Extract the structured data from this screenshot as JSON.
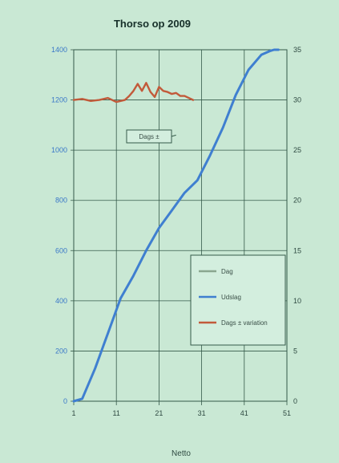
{
  "chart_data": {
    "type": "line",
    "title": "Thorso op 2009",
    "xlabel": "Netto",
    "ylabel": "",
    "y2label": "",
    "x_ticks": [
      "1",
      "11",
      "21",
      "31",
      "41",
      "51"
    ],
    "y_left_ticks": [
      "0",
      "200",
      "400",
      "600",
      "800",
      "1000",
      "1200",
      "1400"
    ],
    "y_right_ticks": [
      "0",
      "5",
      "10",
      "15",
      "20",
      "25",
      "30",
      "35"
    ],
    "xlim": [
      1,
      51
    ],
    "ylim": [
      0,
      1400
    ],
    "y2lim": [
      0,
      35
    ],
    "series": [
      {
        "name": "Udslag",
        "axis": "left",
        "color": "#3f7fd0",
        "x": [
          1,
          3,
          6,
          9,
          12,
          15,
          18,
          21,
          24,
          27,
          30,
          33,
          36,
          39,
          42,
          45,
          47,
          48,
          49
        ],
        "y": [
          0,
          10,
          130,
          270,
          410,
          500,
          600,
          690,
          760,
          830,
          880,
          980,
          1090,
          1220,
          1320,
          1380,
          1395,
          1400,
          1400
        ]
      },
      {
        "name": "Dags ±",
        "axis": "right",
        "color": "#c25a3a",
        "x": [
          1,
          3,
          5,
          7,
          9,
          11,
          13,
          14,
          15,
          16,
          17,
          18,
          19,
          20,
          21,
          22,
          23,
          24,
          25,
          26,
          27,
          28,
          29
        ],
        "y": [
          30.0,
          30.1,
          29.9,
          30.0,
          30.2,
          29.8,
          30.0,
          30.4,
          30.9,
          31.6,
          30.9,
          31.7,
          30.8,
          30.3,
          31.3,
          30.9,
          30.8,
          30.6,
          30.7,
          30.4,
          30.4,
          30.2,
          30.0
        ]
      }
    ],
    "annotation": {
      "text": "Dags ±",
      "at_x": 25,
      "at_y2": 26.5
    },
    "legend": {
      "placement": "bottom-right",
      "entries": [
        {
          "label": "Dag",
          "color": "#8aa68f"
        },
        {
          "label": "Udslag",
          "color": "#3f7fd0"
        },
        {
          "label": "Dags ± variation",
          "color": "#c25a3a"
        }
      ]
    },
    "grid": true,
    "colors": {
      "background": "#c9e8d4",
      "grid": "#355a4a",
      "left_axis": "#3a78c8",
      "right_axis": "#c0402a"
    }
  }
}
